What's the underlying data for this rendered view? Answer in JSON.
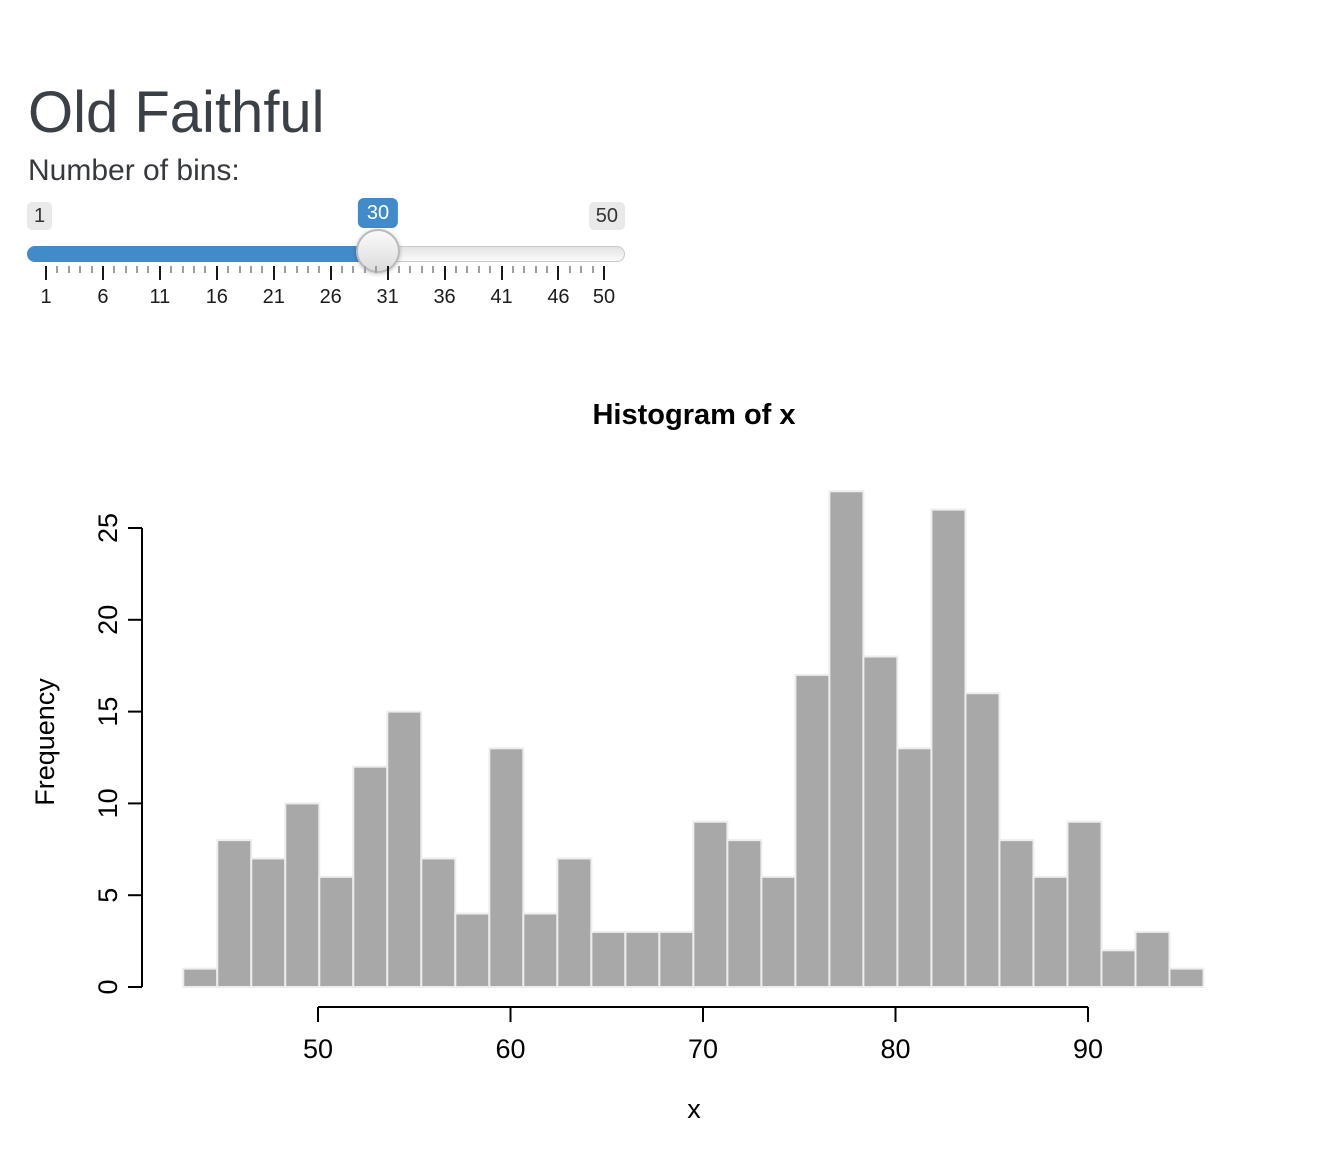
{
  "page": {
    "title": "Old Faithful"
  },
  "slider": {
    "label": "Number of bins:",
    "min": 1,
    "max": 50,
    "value": 30,
    "min_badge": "1",
    "max_badge": "50",
    "value_badge": "30",
    "major_ticks": [
      1,
      6,
      11,
      16,
      21,
      26,
      31,
      36,
      41,
      46,
      50
    ],
    "accent_color": "#428bca"
  },
  "chart_data": {
    "type": "bar",
    "title": "Histogram of x",
    "xlabel": "x",
    "ylabel": "Frequency",
    "bin_start": 43,
    "bin_end": 96,
    "n_bins": 30,
    "counts": [
      1,
      8,
      7,
      10,
      6,
      12,
      15,
      7,
      4,
      13,
      4,
      7,
      3,
      3,
      3,
      9,
      8,
      6,
      17,
      27,
      18,
      13,
      26,
      16,
      8,
      6,
      9,
      2,
      3,
      1
    ],
    "x_ticks": [
      50,
      60,
      70,
      80,
      90
    ],
    "y_ticks": [
      0,
      5,
      10,
      15,
      20,
      25
    ],
    "xlim": [
      43,
      96
    ],
    "ylim": [
      0,
      27
    ],
    "grid": false,
    "bar_fill": "#a8a8a8",
    "bar_border": "#ededed"
  }
}
